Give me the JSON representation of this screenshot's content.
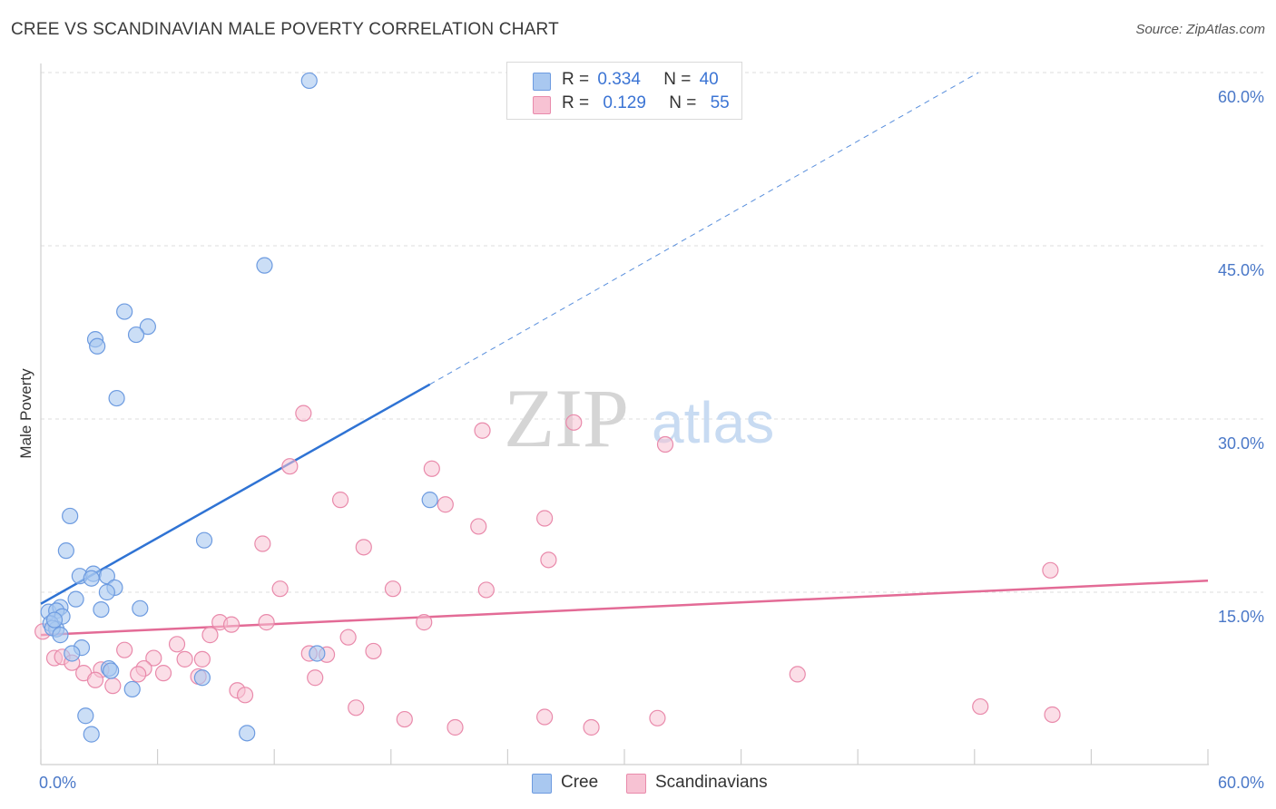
{
  "header": {
    "title": "CREE VS SCANDINAVIAN MALE POVERTY CORRELATION CHART",
    "source": "Source: ZipAtlas.com"
  },
  "watermark": {
    "zip": "ZIP",
    "atlas": "atlas"
  },
  "colors": {
    "cree_fill": "#a9c8f0",
    "cree_stroke": "#6d9be0",
    "cree_line": "#2f73d4",
    "scan_fill": "#f7c2d3",
    "scan_stroke": "#e98aab",
    "scan_line": "#e36b96",
    "grid": "#dedede",
    "tick_text": "#4a78c8"
  },
  "legend_top": {
    "rows": [
      {
        "r_label": "R =",
        "r_value": "0.334",
        "n_label": "N =",
        "n_value": "40",
        "series": "cree"
      },
      {
        "r_label": "R =",
        "r_value": "0.129",
        "n_label": "N =",
        "n_value": "55",
        "series": "scan"
      }
    ]
  },
  "legend_bottom": {
    "items": [
      {
        "label": "Cree",
        "series": "cree"
      },
      {
        "label": "Scandinavians",
        "series": "scan"
      }
    ]
  },
  "chart_data": {
    "type": "scatter",
    "title": "CREE VS SCANDINAVIAN MALE POVERTY CORRELATION CHART",
    "xlabel": "",
    "ylabel": "Male Poverty",
    "xlim": [
      0,
      60
    ],
    "ylim": [
      0,
      62
    ],
    "x_tick_labels": [
      "0.0%",
      "60.0%"
    ],
    "y_ticks": [
      15,
      30,
      45,
      60
    ],
    "y_tick_labels": [
      "15.0%",
      "30.0%",
      "45.0%",
      "60.0%"
    ],
    "series": [
      {
        "name": "Cree",
        "R": 0.334,
        "N": 40,
        "trend": {
          "x0": 0,
          "y0": 14.0,
          "x1": 20.0,
          "y1": 33.0,
          "dashed_to_x": 48.2,
          "dashed_to_y": 60.0
        },
        "points": [
          [
            13.8,
            59.3
          ],
          [
            11.5,
            43.3
          ],
          [
            4.3,
            39.3
          ],
          [
            5.5,
            38.0
          ],
          [
            4.9,
            37.3
          ],
          [
            2.8,
            36.9
          ],
          [
            2.9,
            36.3
          ],
          [
            3.9,
            31.8
          ],
          [
            20.0,
            23.0
          ],
          [
            1.5,
            21.6
          ],
          [
            8.4,
            19.5
          ],
          [
            1.3,
            18.6
          ],
          [
            2.0,
            16.4
          ],
          [
            2.7,
            16.6
          ],
          [
            3.4,
            16.4
          ],
          [
            2.6,
            16.2
          ],
          [
            3.8,
            15.4
          ],
          [
            3.4,
            15.0
          ],
          [
            1.8,
            14.4
          ],
          [
            3.1,
            13.5
          ],
          [
            5.1,
            13.6
          ],
          [
            0.4,
            13.3
          ],
          [
            1.0,
            13.7
          ],
          [
            0.8,
            13.4
          ],
          [
            1.1,
            12.9
          ],
          [
            0.5,
            12.3
          ],
          [
            0.8,
            11.8
          ],
          [
            0.6,
            11.9
          ],
          [
            1.0,
            11.3
          ],
          [
            2.1,
            10.2
          ],
          [
            1.6,
            9.7
          ],
          [
            3.5,
            8.4
          ],
          [
            3.6,
            8.2
          ],
          [
            14.2,
            9.7
          ],
          [
            8.3,
            7.6
          ],
          [
            4.7,
            6.6
          ],
          [
            2.3,
            4.3
          ],
          [
            2.6,
            2.7
          ],
          [
            10.6,
            2.8
          ],
          [
            0.7,
            12.6
          ]
        ]
      },
      {
        "name": "Scandinavians",
        "R": 0.129,
        "N": 55,
        "trend": {
          "x0": 0,
          "y0": 11.3,
          "x1": 60,
          "y1": 16.0
        },
        "points": [
          [
            13.5,
            30.5
          ],
          [
            27.4,
            29.7
          ],
          [
            22.7,
            29.0
          ],
          [
            32.1,
            27.8
          ],
          [
            12.8,
            25.9
          ],
          [
            20.1,
            25.7
          ],
          [
            15.4,
            23.0
          ],
          [
            20.8,
            22.6
          ],
          [
            25.9,
            21.4
          ],
          [
            22.5,
            20.7
          ],
          [
            11.4,
            19.2
          ],
          [
            16.6,
            18.9
          ],
          [
            26.1,
            17.8
          ],
          [
            51.9,
            16.9
          ],
          [
            12.3,
            15.3
          ],
          [
            18.1,
            15.3
          ],
          [
            22.9,
            15.2
          ],
          [
            9.2,
            12.4
          ],
          [
            9.8,
            12.2
          ],
          [
            11.6,
            12.4
          ],
          [
            19.7,
            12.4
          ],
          [
            8.7,
            11.3
          ],
          [
            15.8,
            11.1
          ],
          [
            0.1,
            11.6
          ],
          [
            7.0,
            10.5
          ],
          [
            4.3,
            10.0
          ],
          [
            13.8,
            9.7
          ],
          [
            14.7,
            9.6
          ],
          [
            17.1,
            9.9
          ],
          [
            5.8,
            9.3
          ],
          [
            7.4,
            9.2
          ],
          [
            8.3,
            9.2
          ],
          [
            0.7,
            9.3
          ],
          [
            1.1,
            9.4
          ],
          [
            1.6,
            8.9
          ],
          [
            3.1,
            8.3
          ],
          [
            5.3,
            8.4
          ],
          [
            2.2,
            8.0
          ],
          [
            5.0,
            7.9
          ],
          [
            6.3,
            8.0
          ],
          [
            8.1,
            7.7
          ],
          [
            14.1,
            7.6
          ],
          [
            38.9,
            7.9
          ],
          [
            2.8,
            7.4
          ],
          [
            3.7,
            6.9
          ],
          [
            10.1,
            6.5
          ],
          [
            10.5,
            6.1
          ],
          [
            16.2,
            5.0
          ],
          [
            18.7,
            4.0
          ],
          [
            25.9,
            4.2
          ],
          [
            28.3,
            3.3
          ],
          [
            31.7,
            4.1
          ],
          [
            21.3,
            3.3
          ],
          [
            48.3,
            5.1
          ],
          [
            52.0,
            4.4
          ]
        ]
      }
    ]
  }
}
